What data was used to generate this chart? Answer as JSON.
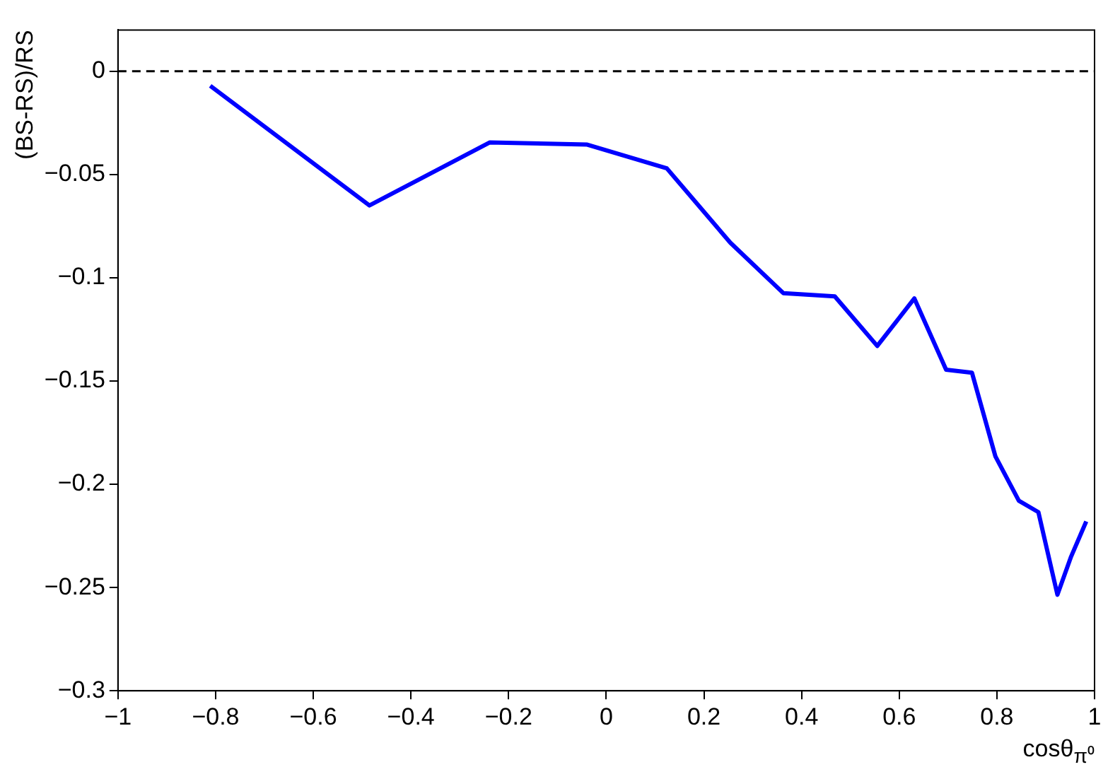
{
  "chart_data": {
    "type": "line",
    "xlabel": "cosθ$_{π⁰}$",
    "ylabel": "(BS-RS)/RS",
    "x": [
      -0.811,
      -0.485,
      -0.239,
      -0.039,
      0.124,
      0.254,
      0.363,
      0.468,
      0.555,
      0.631,
      0.696,
      0.749,
      0.797,
      0.845,
      0.885,
      0.924,
      0.952,
      0.983
    ],
    "series": [
      {
        "color": "#0000ff",
        "values": [
          -0.007,
          -0.065,
          -0.0345,
          -0.0355,
          -0.047,
          -0.083,
          -0.1075,
          -0.109,
          -0.133,
          -0.11,
          -0.1445,
          -0.146,
          -0.1865,
          -0.208,
          -0.2135,
          -0.2535,
          -0.235,
          -0.218
        ]
      }
    ],
    "xlim": [
      -1,
      1
    ],
    "xticks": [
      {
        "value": -1,
        "label": "−1"
      },
      {
        "value": -0.8,
        "label": "−0.8"
      },
      {
        "value": -0.6,
        "label": "−0.6"
      },
      {
        "value": -0.4,
        "label": "−0.4"
      },
      {
        "value": -0.2,
        "label": "−0.2"
      },
      0,
      0.2,
      0.4,
      0.6,
      0.8,
      1
    ],
    "ylim": [
      -0.3,
      0.02
    ],
    "yticks": [
      {
        "value": -0.3,
        "label": "−0.3"
      },
      {
        "value": -0.25,
        "label": "−0.25"
      },
      {
        "value": -0.2,
        "label": "−0.2"
      },
      {
        "value": -0.15,
        "label": "−0.15"
      },
      {
        "value": -0.1,
        "label": "−0.1"
      },
      {
        "value": -0.05,
        "label": "−0.05"
      },
      0
    ],
    "ref_lines": [
      {
        "axis": "y",
        "value": 0,
        "color": "#000000",
        "line_style": "dashed"
      }
    ],
    "grid": false,
    "legend": false,
    "marker": "none",
    "line_style": "solid"
  }
}
